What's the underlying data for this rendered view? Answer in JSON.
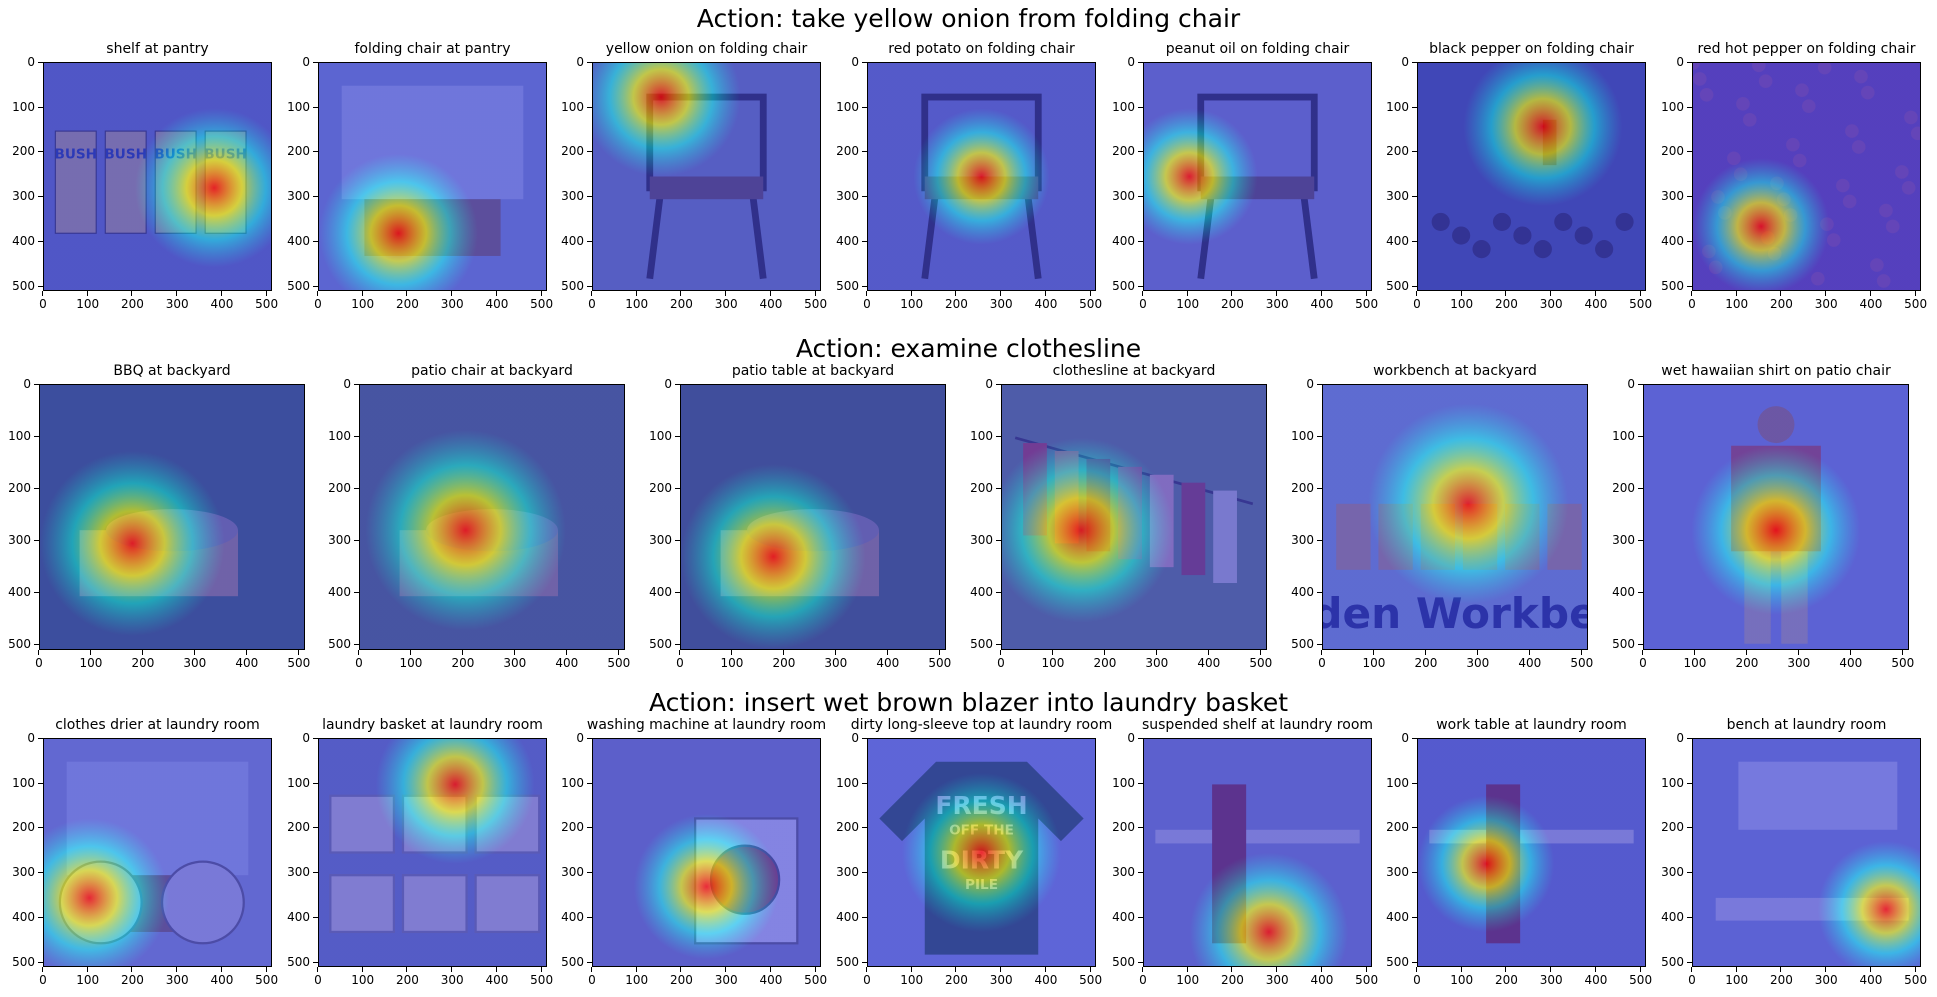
{
  "rows": [
    {
      "title": "Action: take yellow onion from folding chair",
      "panels": [
        {
          "label": "shelf at pantry",
          "scene": "pantry-shelf",
          "hot": [
            0.75,
            0.55
          ],
          "spread": 0.35
        },
        {
          "label": "folding chair at pantry",
          "scene": "pantry-room",
          "hot": [
            0.35,
            0.75
          ],
          "spread": 0.35
        },
        {
          "label": "yellow onion on folding chair",
          "scene": "outdoor-chairs",
          "hot": [
            0.3,
            0.15
          ],
          "spread": 0.35
        },
        {
          "label": "red potato on folding chair",
          "scene": "folding-chair",
          "hot": [
            0.5,
            0.5
          ],
          "spread": 0.3
        },
        {
          "label": "peanut oil on folding chair",
          "scene": "deck-chair",
          "hot": [
            0.2,
            0.5
          ],
          "spread": 0.3
        },
        {
          "label": "black pepper on folding chair",
          "scene": "gathering",
          "hot": [
            0.55,
            0.28
          ],
          "spread": 0.35
        },
        {
          "label": "red hot pepper on folding chair",
          "scene": "texture",
          "hot": [
            0.3,
            0.72
          ],
          "spread": 0.3
        }
      ]
    },
    {
      "title": "Action: examine clothesline",
      "panels": [
        {
          "label": "BBQ at backyard",
          "scene": "bbq",
          "hot": [
            0.35,
            0.6
          ],
          "spread": 0.35
        },
        {
          "label": "patio chair at backyard",
          "scene": "patio",
          "hot": [
            0.4,
            0.55
          ],
          "spread": 0.38
        },
        {
          "label": "patio table at backyard",
          "scene": "patio-table",
          "hot": [
            0.35,
            0.65
          ],
          "spread": 0.35
        },
        {
          "label": "clothesline at backyard",
          "scene": "clothesline",
          "hot": [
            0.3,
            0.55
          ],
          "spread": 0.35
        },
        {
          "label": "workbench at backyard",
          "scene": "workbench",
          "hot": [
            0.55,
            0.45
          ],
          "spread": 0.38
        },
        {
          "label": "wet hawaiian shirt on patio chair",
          "scene": "shirt",
          "hot": [
            0.5,
            0.55
          ],
          "spread": 0.32
        }
      ]
    },
    {
      "title": "Action: insert wet brown blazer into laundry basket",
      "panels": [
        {
          "label": "clothes drier at laundry room",
          "scene": "drier",
          "hot": [
            0.2,
            0.7
          ],
          "spread": 0.35
        },
        {
          "label": "laundry basket at laundry room",
          "scene": "baskets",
          "hot": [
            0.6,
            0.2
          ],
          "spread": 0.35
        },
        {
          "label": "washing machine at laundry room",
          "scene": "washer",
          "hot": [
            0.5,
            0.65
          ],
          "spread": 0.32
        },
        {
          "label": "dirty long-sleeve top at laundry room",
          "scene": "shirt-flat",
          "hot": [
            0.5,
            0.5
          ],
          "spread": 0.35
        },
        {
          "label": "suspended shelf at laundry room",
          "scene": "shelf",
          "hot": [
            0.55,
            0.85
          ],
          "spread": 0.35
        },
        {
          "label": "work table at laundry room",
          "scene": "worktable",
          "hot": [
            0.3,
            0.55
          ],
          "spread": 0.3
        },
        {
          "label": "bench at laundry room",
          "scene": "bench",
          "hot": [
            0.85,
            0.75
          ],
          "spread": 0.3
        }
      ]
    }
  ],
  "axis_ticks": [
    "0",
    "100",
    "200",
    "300",
    "400",
    "500"
  ],
  "overlay_text": {
    "cans": "BUSH",
    "workbench": "den Workbe",
    "shirt_line1": "FRESH",
    "shirt_line2": "OFF THE",
    "shirt_line3": "DIRTY",
    "shirt_line4": "PILE"
  },
  "colors": {
    "heat_hot": "#ff0000",
    "heat_warm": "#ffff00",
    "heat_cool": "#00ffff",
    "heat_base": "#3a3ad8"
  }
}
